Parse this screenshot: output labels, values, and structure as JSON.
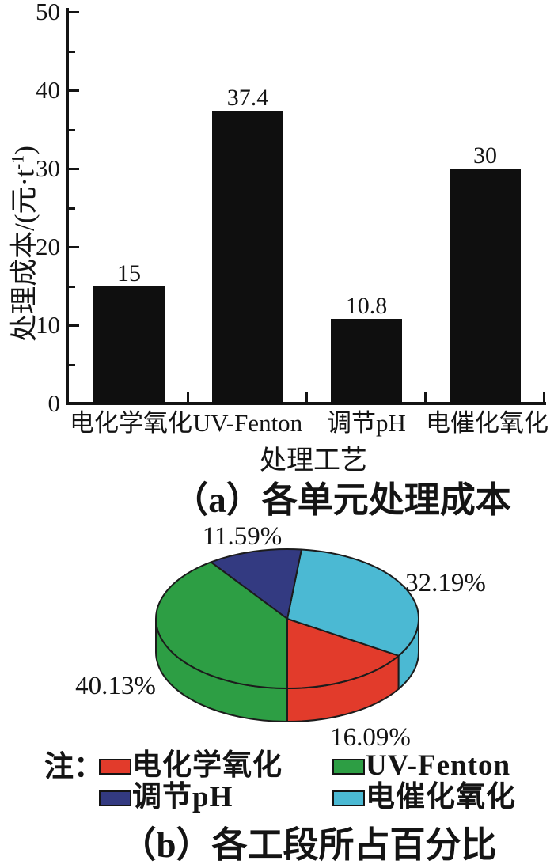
{
  "chart_data": [
    {
      "type": "bar",
      "title": "",
      "categories": [
        "电化学氧化",
        "UV-Fenton",
        "调节pH",
        "电催化氧化"
      ],
      "values": [
        15,
        37.4,
        10.8,
        30
      ],
      "value_labels": [
        "15",
        "37.4",
        "10.8",
        "30"
      ],
      "xlabel": "处理工艺",
      "ylabel": {
        "prefix": "处理成本/(元·t",
        "sup": "-1",
        "suffix": ")"
      },
      "ylim": [
        0,
        50
      ],
      "yticks": [
        0,
        10,
        20,
        30,
        40,
        50
      ],
      "minor_yticks": [
        5,
        15,
        25,
        35,
        45
      ],
      "grid": false,
      "bar_color": "#0f0f0f",
      "caption": "（a）各单元处理成本"
    },
    {
      "type": "pie",
      "style": "3d",
      "start_angle_deg": 270,
      "direction": "ccw",
      "slices": [
        {
          "label": "电化学氧化",
          "value": 16.09,
          "display": "16.09%",
          "color": "#e23b2b"
        },
        {
          "label": "电催化氧化",
          "value": 32.19,
          "display": "32.19%",
          "color": "#4bb9d3"
        },
        {
          "label": "调节pH",
          "value": 11.59,
          "display": "11.59%",
          "color": "#333a81"
        },
        {
          "label": "UV-Fenton",
          "value": 40.13,
          "display": "40.13%",
          "color": "#2d9e44"
        }
      ],
      "caption": "（b）各工段所占百分比"
    }
  ],
  "legend": {
    "prefix": "注：",
    "items": [
      {
        "label": "电化学氧化",
        "color": "#e23b2b"
      },
      {
        "label": "UV-Fenton",
        "color": "#2d9e44"
      },
      {
        "label": "调节pH",
        "color": "#333a81"
      },
      {
        "label": "电催化氧化",
        "color": "#4bb9d3"
      }
    ]
  }
}
